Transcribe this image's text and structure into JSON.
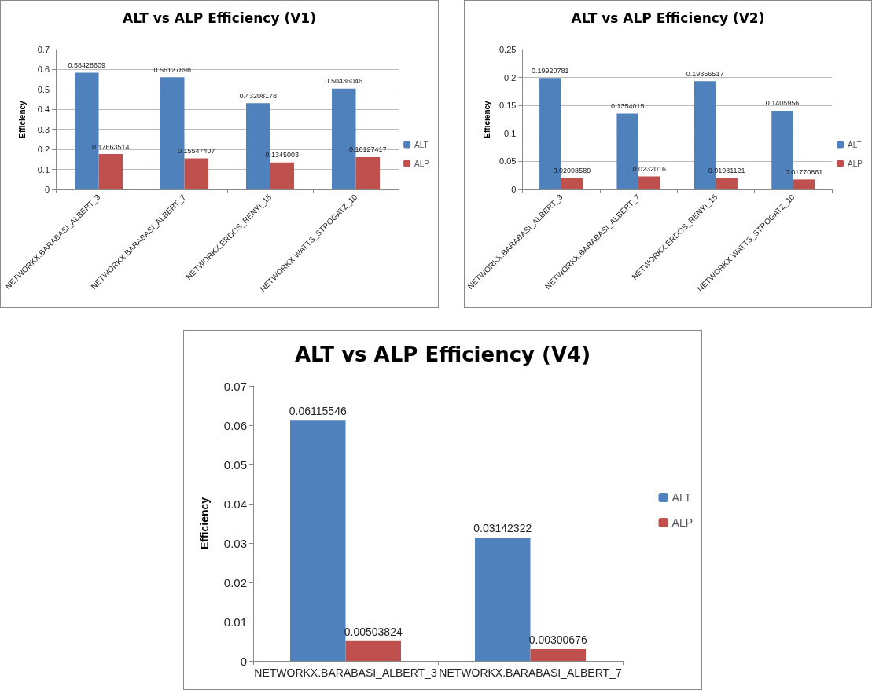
{
  "chart_data": [
    {
      "type": "bar",
      "title": "ALT vs ALP Efficiency (V1)",
      "ylabel": "Efficiency",
      "categories": [
        "NETWORKX.BARABASI_ALBERT_3",
        "NETWORKX.BARABASI_ALBERT_7",
        "NETWORKX.ERDOS_RENYI_15",
        "NETWORKX.WATTS_STROGATZ_10"
      ],
      "series": [
        {
          "name": "ALT",
          "color": "#4f81bd",
          "values": [
            0.58428609,
            0.56127898,
            0.43208178,
            0.50436046
          ]
        },
        {
          "name": "ALP",
          "color": "#c0504d",
          "values": [
            0.17663514,
            0.15547407,
            0.1345003,
            0.16127417
          ]
        }
      ],
      "ylim": [
        0,
        0.7
      ],
      "yticks": [
        0,
        0.1,
        0.2,
        0.3,
        0.4,
        0.5,
        0.6,
        0.7
      ],
      "grid": "y",
      "legend": "right",
      "data_labels": true
    },
    {
      "type": "bar",
      "title": "ALT vs ALP Efficiency (V2)",
      "ylabel": "Efficiency",
      "categories": [
        "NETWORKX.BARABASI_ALBERT_3",
        "NETWORKX.BARABASI_ALBERT_7",
        "NETWORKX.ERDOS_RENYI_15",
        "NETWORKX.WATTS_STROGATZ_10"
      ],
      "series": [
        {
          "name": "ALT",
          "color": "#4f81bd",
          "values": [
            0.19920781,
            0.1354015,
            0.19356517,
            0.1405956
          ]
        },
        {
          "name": "ALP",
          "color": "#c0504d",
          "values": [
            0.02098589,
            0.0232016,
            0.01981121,
            0.01770861
          ]
        }
      ],
      "ylim": [
        0,
        0.25
      ],
      "yticks": [
        0,
        0.05,
        0.1,
        0.15,
        0.2,
        0.25
      ],
      "grid": "y",
      "legend": "right",
      "data_labels": true
    },
    {
      "type": "bar",
      "title": "ALT vs ALP Efficiency (V4)",
      "ylabel": "Efficiency",
      "categories": [
        "NETWORKX.BARABASI_ALBERT_3",
        "NETWORKX.BARABASI_ALBERT_7"
      ],
      "series": [
        {
          "name": "ALT",
          "color": "#4f81bd",
          "values": [
            0.06115546,
            0.03142322
          ]
        },
        {
          "name": "ALP",
          "color": "#c0504d",
          "values": [
            0.00503824,
            0.00300676
          ]
        }
      ],
      "ylim": [
        0,
        0.07
      ],
      "yticks": [
        0,
        0.01,
        0.02,
        0.03,
        0.04,
        0.05,
        0.06,
        0.07
      ],
      "grid": false,
      "legend": "right",
      "data_labels": true
    }
  ]
}
